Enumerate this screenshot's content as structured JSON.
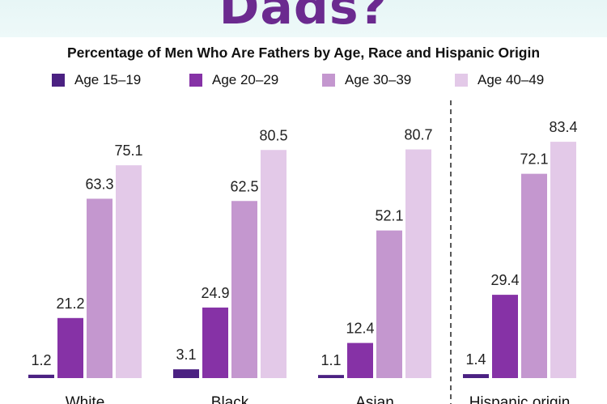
{
  "banner": {
    "title": "Dads?"
  },
  "chart_data": {
    "type": "bar",
    "title": "Percentage of Men Who Are Fathers by Age, Race and Hispanic Origin",
    "categories": [
      "White",
      "Black",
      "Asian",
      "Hispanic origin"
    ],
    "series": [
      {
        "name": "Age 15–19",
        "values": [
          1.2,
          3.1,
          1.1,
          1.4
        ],
        "color": "#4b2182"
      },
      {
        "name": "Age 20–29",
        "values": [
          21.2,
          24.9,
          12.4,
          29.4
        ],
        "color": "#8632a6"
      },
      {
        "name": "Age 30–39",
        "values": [
          63.3,
          62.5,
          52.1,
          72.1
        ],
        "color": "#c497cf"
      },
      {
        "name": "Age 40–49",
        "values": [
          75.1,
          80.5,
          80.7,
          83.4
        ],
        "color": "#e3c9e8"
      }
    ],
    "ylim": [
      0,
      100
    ],
    "legend": "top",
    "grid": false,
    "separator_before": "Hispanic origin"
  }
}
